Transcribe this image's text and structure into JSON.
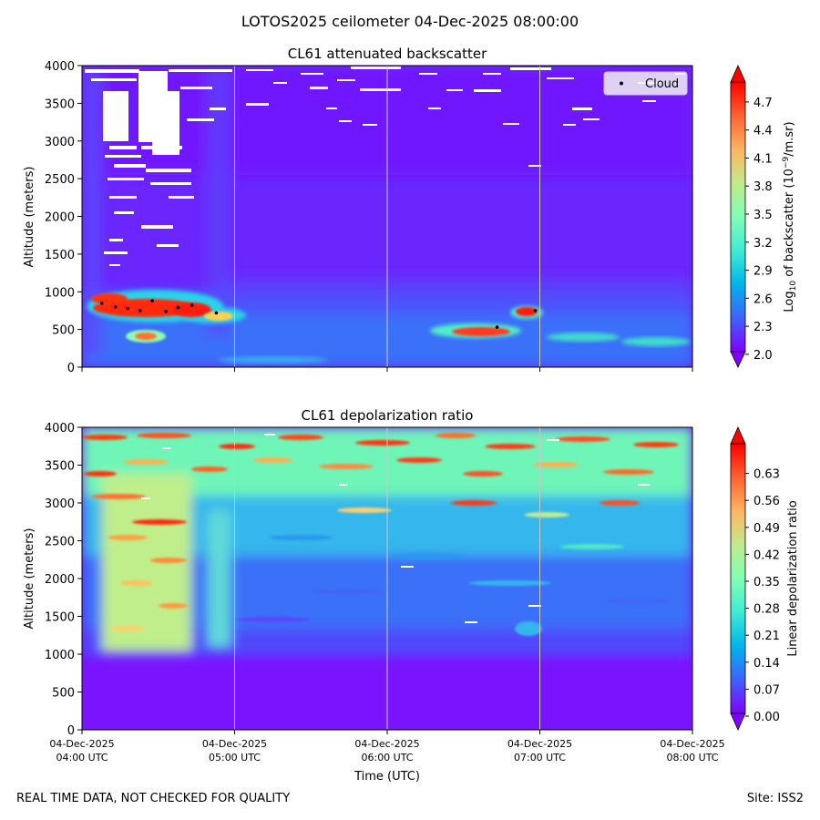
{
  "suptitle": "LOTOS2025 ceilometer 04-Dec-2025 08:00:00",
  "footer": {
    "left": "REAL TIME DATA, NOT CHECKED FOR QUALITY",
    "right": "Site: ISS2"
  },
  "chart_data": [
    {
      "type": "heatmap",
      "title": "CL61 attenuated backscatter",
      "xlabel": "",
      "ylabel": "Altitude (meters)",
      "ylim": [
        0,
        4000
      ],
      "yticks": [
        "0",
        "500",
        "1000",
        "1500",
        "2000",
        "2500",
        "3000",
        "3500",
        "4000"
      ],
      "xticks": [],
      "colorbar": {
        "label_prefix": "Log",
        "label_sub": "10",
        "label_mid": " of backscatter (10",
        "label_sup": "−9",
        "label_suffix": "/m.sr)",
        "range": [
          2.0,
          4.9
        ],
        "ticks": [
          "2.0",
          "2.3",
          "2.6",
          "2.9",
          "3.2",
          "3.5",
          "3.8",
          "4.1",
          "4.4",
          "4.7"
        ]
      },
      "legend": {
        "label": "Cloud",
        "position": "top-right"
      },
      "cloud_points": [
        {
          "t": 0.13,
          "alt": 850
        },
        {
          "t": 0.22,
          "alt": 800
        },
        {
          "t": 0.3,
          "alt": 780
        },
        {
          "t": 0.38,
          "alt": 750
        },
        {
          "t": 0.46,
          "alt": 880
        },
        {
          "t": 0.55,
          "alt": 740
        },
        {
          "t": 0.63,
          "alt": 790
        },
        {
          "t": 0.72,
          "alt": 820
        },
        {
          "t": 0.88,
          "alt": 720
        },
        {
          "t": 2.72,
          "alt": 530
        },
        {
          "t": 2.97,
          "alt": 750
        }
      ]
    },
    {
      "type": "heatmap",
      "title": "CL61 depolarization ratio",
      "xlabel": "Time (UTC)",
      "ylabel": "Altitude (meters)",
      "ylim": [
        0,
        4000
      ],
      "yticks": [
        "0",
        "500",
        "1000",
        "1500",
        "2000",
        "2500",
        "3000",
        "3500",
        "4000"
      ],
      "xticks": [
        [
          "04-Dec-2025",
          "04:00 UTC"
        ],
        [
          "04-Dec-2025",
          "05:00 UTC"
        ],
        [
          "04-Dec-2025",
          "06:00 UTC"
        ],
        [
          "04-Dec-2025",
          "07:00 UTC"
        ],
        [
          "04-Dec-2025",
          "08:00 UTC"
        ]
      ],
      "colorbar": {
        "label": "Linear depolarization ratio",
        "range": [
          0.0,
          0.7
        ],
        "ticks": [
          "0.00",
          "0.07",
          "0.14",
          "0.21",
          "0.28",
          "0.35",
          "0.42",
          "0.49",
          "0.56",
          "0.63"
        ]
      }
    }
  ]
}
